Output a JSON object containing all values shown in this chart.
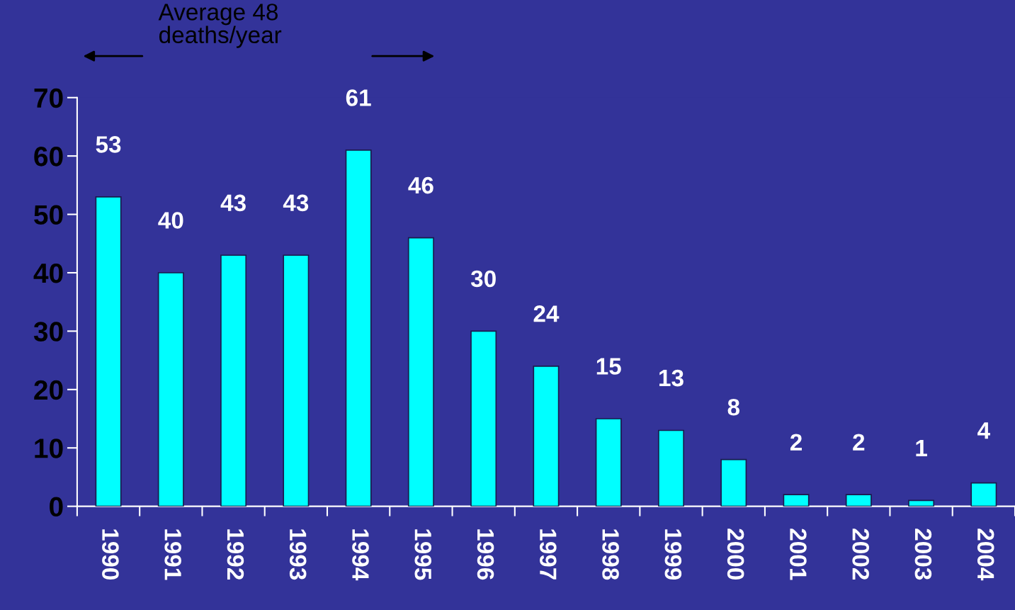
{
  "chart_data": {
    "type": "bar",
    "categories": [
      "1990",
      "1991",
      "1992",
      "1993",
      "1994",
      "1995",
      "1996",
      "1997",
      "1998",
      "1999",
      "2000",
      "2001",
      "2002",
      "2003",
      "2004"
    ],
    "values": [
      53,
      40,
      43,
      43,
      61,
      46,
      30,
      24,
      15,
      13,
      8,
      2,
      2,
      1,
      4
    ],
    "color": "#00ffff",
    "ylim": [
      0,
      70
    ],
    "yticks": [
      0,
      10,
      20,
      30,
      40,
      50,
      60,
      70
    ],
    "data_labels": true,
    "grid": false,
    "annotations": [
      "Average 48\ndeaths/year"
    ]
  }
}
